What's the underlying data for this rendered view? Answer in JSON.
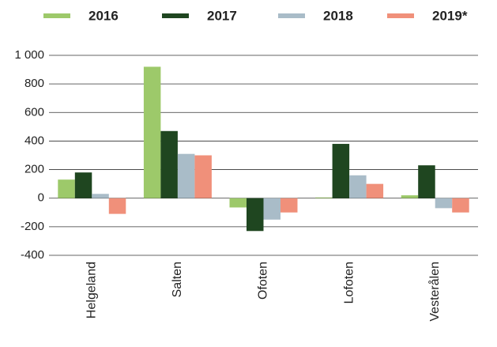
{
  "chart_data": {
    "type": "bar",
    "categories": [
      "Helgeland",
      "Salten",
      "Ofoten",
      "Lofoten",
      "Vesterålen"
    ],
    "series": [
      {
        "name": "2016",
        "color": "#9dc96a",
        "values": [
          130,
          920,
          -65,
          5,
          20
        ]
      },
      {
        "name": "2017",
        "color": "#1f4620",
        "values": [
          180,
          470,
          -230,
          380,
          230
        ]
      },
      {
        "name": "2018",
        "color": "#a9bcc8",
        "values": [
          30,
          310,
          -150,
          160,
          -70
        ]
      },
      {
        "name": "2019*",
        "color": "#f0907a",
        "values": [
          -110,
          300,
          -100,
          100,
          -100
        ]
      }
    ],
    "ylim": [
      -400,
      1000
    ],
    "yticks": [
      -400,
      -200,
      0,
      200,
      400,
      600,
      800,
      {
        "value": 1000,
        "label": "1 000"
      }
    ],
    "grid": true,
    "legend": "top"
  }
}
